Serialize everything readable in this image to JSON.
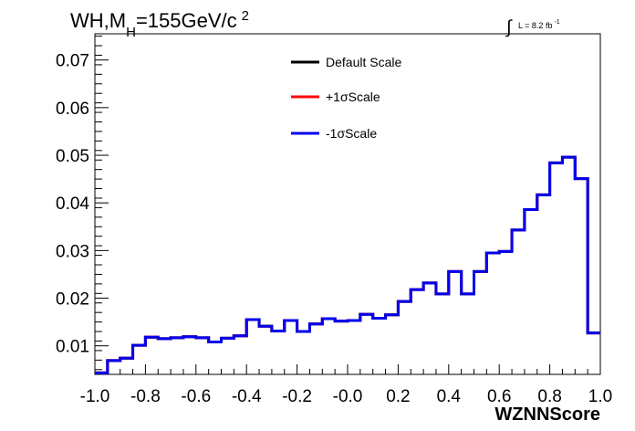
{
  "chart_data": {
    "type": "line",
    "style": "step-histogram",
    "title": {
      "main": "WH,M",
      "subscript": "H",
      "rest": "=155GeV/c",
      "superscript": "2"
    },
    "luminosity": {
      "integral_symbol": "∫",
      "text": "L = 8.2 fb",
      "superscript": "-1"
    },
    "xlabel": "WZNNScore",
    "ylabel": "",
    "xlim": [
      -1.0,
      1.0
    ],
    "ylim": [
      0.004,
      0.0755
    ],
    "x_ticks": [
      "-1.0",
      "-0.8",
      "-0.6",
      "-0.4",
      "-0.2",
      "-0.0",
      "0.2",
      "0.4",
      "0.6",
      "0.8",
      "1.0"
    ],
    "y_ticks": [
      "0.01",
      "0.02",
      "0.03",
      "0.04",
      "0.05",
      "0.06",
      "0.07"
    ],
    "legend_position": "top-center",
    "bin_edges": [
      -1.0,
      -0.95,
      -0.9,
      -0.85,
      -0.8,
      -0.75,
      -0.7,
      -0.65,
      -0.6,
      -0.55,
      -0.5,
      -0.45,
      -0.4,
      -0.35,
      -0.3,
      -0.25,
      -0.2,
      -0.15,
      -0.1,
      -0.05,
      0.0,
      0.05,
      0.1,
      0.15,
      0.2,
      0.25,
      0.3,
      0.35,
      0.4,
      0.45,
      0.5,
      0.55,
      0.6,
      0.65,
      0.7,
      0.75,
      0.8,
      0.85,
      0.9,
      0.95,
      1.0
    ],
    "series": [
      {
        "name": "Default Scale",
        "color": "#000000",
        "values": [
          0.0043,
          0.0069,
          0.0074,
          0.0101,
          0.0118,
          0.0115,
          0.0117,
          0.0119,
          0.0117,
          0.0108,
          0.0116,
          0.0121,
          0.0155,
          0.0141,
          0.0131,
          0.0153,
          0.013,
          0.0146,
          0.0157,
          0.0152,
          0.0153,
          0.0166,
          0.0158,
          0.0165,
          0.0193,
          0.0218,
          0.0232,
          0.0209,
          0.0256,
          0.0209,
          0.0256,
          0.0295,
          0.0298,
          0.0343,
          0.0386,
          0.0417,
          0.0484,
          0.0496,
          0.0451,
          0.0127
        ]
      },
      {
        "name": "+1σScale",
        "color": "#ff0000",
        "values": [
          0.0043,
          0.0069,
          0.0074,
          0.0101,
          0.0118,
          0.0115,
          0.0117,
          0.0119,
          0.0117,
          0.0108,
          0.0116,
          0.0121,
          0.0155,
          0.0141,
          0.0131,
          0.0153,
          0.013,
          0.0146,
          0.0157,
          0.0152,
          0.0153,
          0.0166,
          0.0158,
          0.0165,
          0.0193,
          0.0218,
          0.0232,
          0.0209,
          0.0256,
          0.0209,
          0.0256,
          0.0295,
          0.0298,
          0.0343,
          0.0386,
          0.0417,
          0.0484,
          0.0496,
          0.0451,
          0.0127
        ]
      },
      {
        "name": "-1σScale",
        "color": "#0000ee",
        "values": [
          0.0043,
          0.0069,
          0.0074,
          0.0101,
          0.0118,
          0.0115,
          0.0117,
          0.0119,
          0.0117,
          0.0108,
          0.0116,
          0.0121,
          0.0155,
          0.0141,
          0.0131,
          0.0153,
          0.013,
          0.0146,
          0.0157,
          0.0152,
          0.0153,
          0.0166,
          0.0158,
          0.0165,
          0.0193,
          0.0218,
          0.0232,
          0.0209,
          0.0256,
          0.0209,
          0.0256,
          0.0295,
          0.0298,
          0.0343,
          0.0386,
          0.0417,
          0.0484,
          0.0496,
          0.0451,
          0.0127
        ]
      }
    ]
  }
}
